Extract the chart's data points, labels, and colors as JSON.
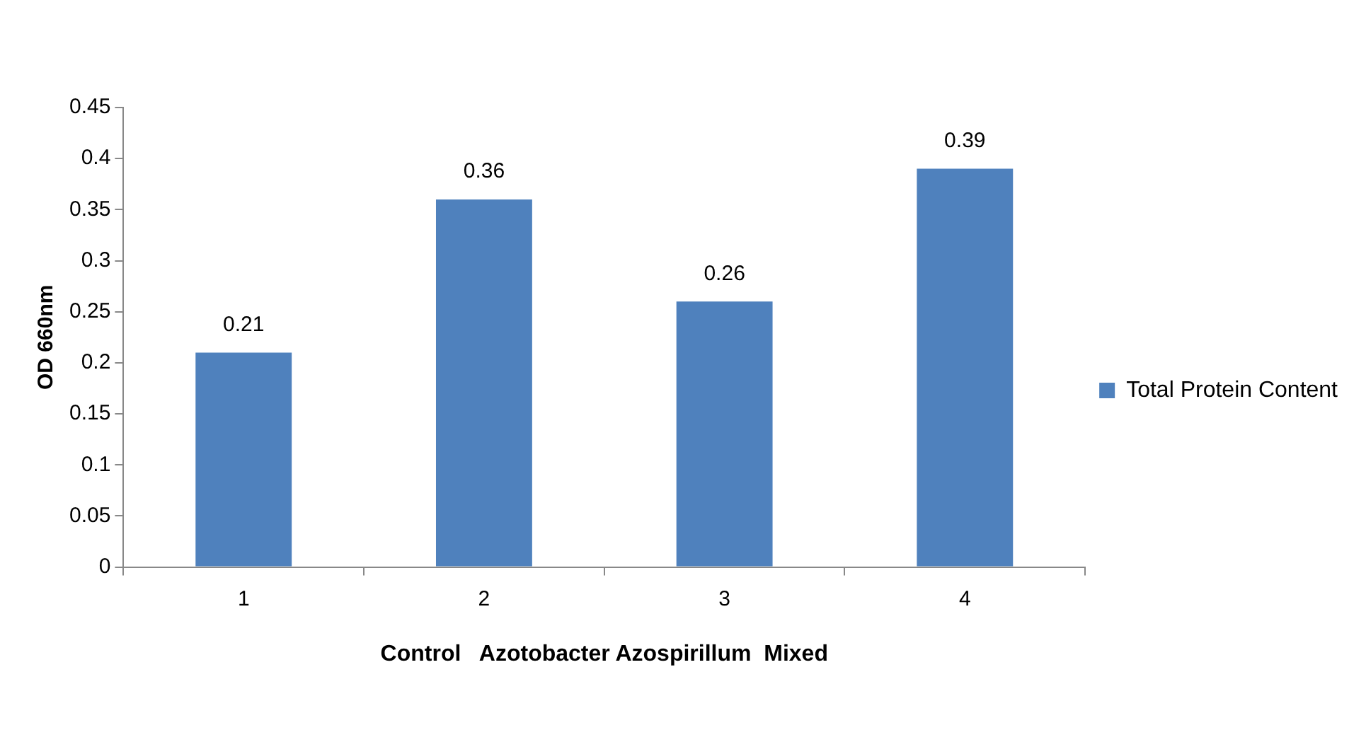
{
  "chart_data": {
    "type": "bar",
    "categories": [
      "1",
      "2",
      "3",
      "4"
    ],
    "series": [
      {
        "name": "Total Protein Content",
        "color": "#4f81bd",
        "values": [
          0.21,
          0.36,
          0.26,
          0.39
        ]
      }
    ],
    "xlabel": "Control   Azotobacter Azospirillum  Mixed",
    "ylabel": "OD 660nm",
    "ylim": [
      0,
      0.45
    ],
    "yticks": [
      0,
      0.05,
      0.1,
      0.15,
      0.2,
      0.25,
      0.3,
      0.35,
      0.4,
      0.45
    ],
    "grid": false,
    "legend": "right",
    "data_labels": true
  }
}
